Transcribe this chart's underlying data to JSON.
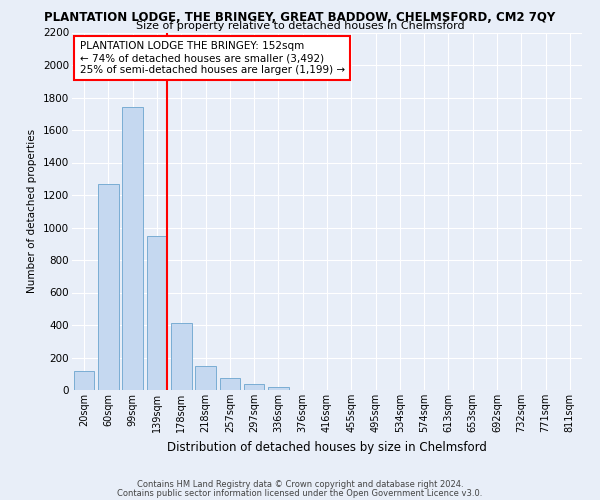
{
  "title": "PLANTATION LODGE, THE BRINGEY, GREAT BADDOW, CHELMSFORD, CM2 7QY",
  "subtitle": "Size of property relative to detached houses in Chelmsford",
  "xlabel": "Distribution of detached houses by size in Chelmsford",
  "ylabel": "Number of detached properties",
  "bar_labels": [
    "20sqm",
    "60sqm",
    "99sqm",
    "139sqm",
    "178sqm",
    "218sqm",
    "257sqm",
    "297sqm",
    "336sqm",
    "376sqm",
    "416sqm",
    "455sqm",
    "495sqm",
    "534sqm",
    "574sqm",
    "613sqm",
    "653sqm",
    "692sqm",
    "732sqm",
    "771sqm",
    "811sqm"
  ],
  "bar_values": [
    120,
    1270,
    1740,
    950,
    410,
    150,
    75,
    35,
    20,
    0,
    0,
    0,
    0,
    0,
    0,
    0,
    0,
    0,
    0,
    0,
    0
  ],
  "bar_color": "#c5d8f0",
  "bar_edge_color": "#7aadd4",
  "vline_color": "red",
  "ylim": [
    0,
    2200
  ],
  "yticks": [
    0,
    200,
    400,
    600,
    800,
    1000,
    1200,
    1400,
    1600,
    1800,
    2000,
    2200
  ],
  "annotation_title": "PLANTATION LODGE THE BRINGEY: 152sqm",
  "annotation_line1": "← 74% of detached houses are smaller (3,492)",
  "annotation_line2": "25% of semi-detached houses are larger (1,199) →",
  "footer1": "Contains HM Land Registry data © Crown copyright and database right 2024.",
  "footer2": "Contains public sector information licensed under the Open Government Licence v3.0.",
  "bg_color": "#e8eef8",
  "grid_color": "#ffffff"
}
